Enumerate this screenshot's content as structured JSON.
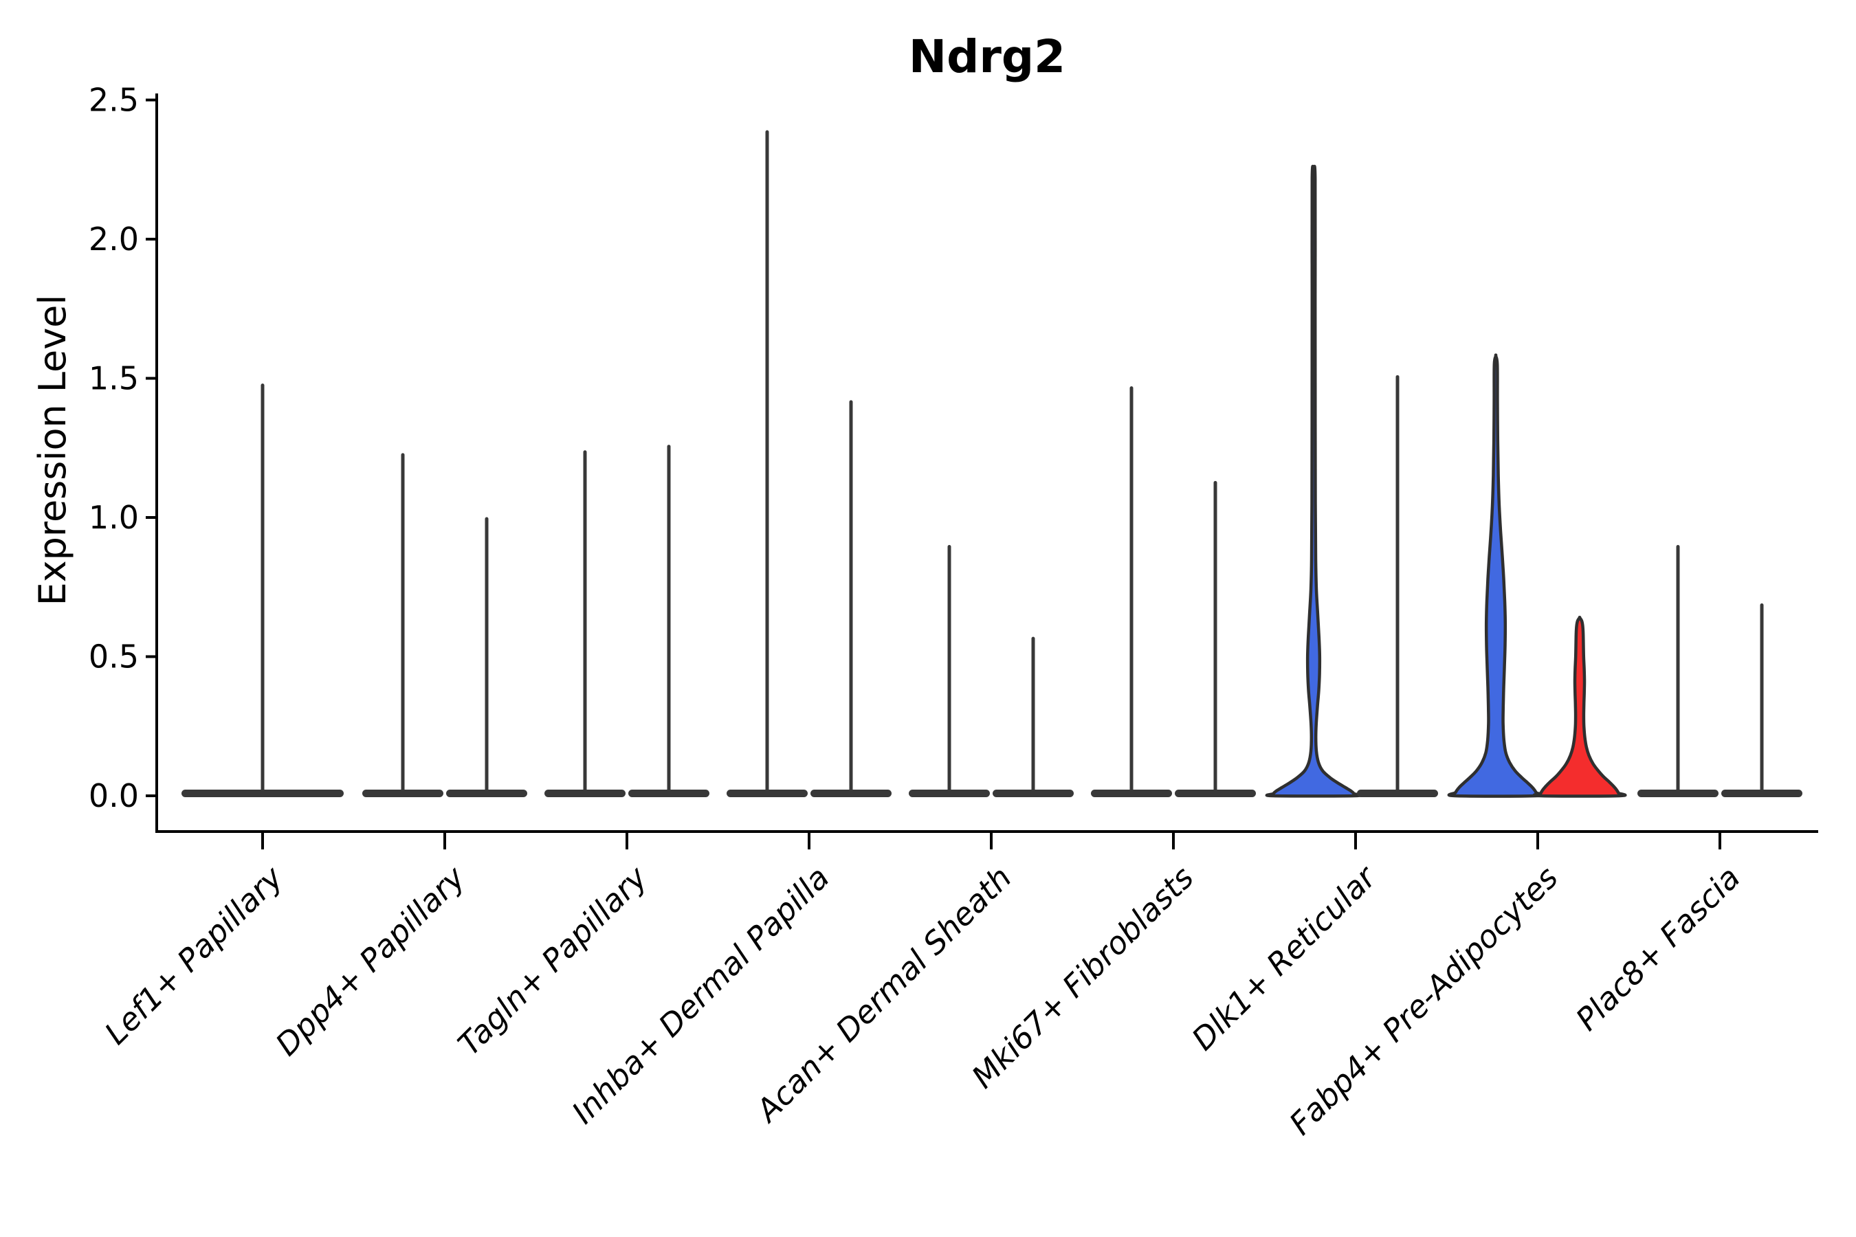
{
  "title": "Ndrg2",
  "y_axis": {
    "label": "Expression Level",
    "tick_labels": [
      "0.0",
      "0.5",
      "1.0",
      "1.5",
      "2.0",
      "2.5"
    ]
  },
  "x_axis": {
    "categories": [
      "Lef1+ Papillary",
      "Dpp4+ Papillary",
      "Tagln+ Papillary",
      "Inhba+ Dermal Papilla",
      "Acan+ Dermal Sheath",
      "Mki67+ Fibroblasts",
      "Dlk1+ Reticular",
      "Fabp4+ Pre-Adipocytes",
      "Plac8+ Fascia"
    ]
  },
  "style": {
    "blue": "#4169E1",
    "red": "#F42D2D",
    "dark": "#383838",
    "outline": "#2F2F2F",
    "background": "#FFFFFF",
    "text": "#000000"
  },
  "chart_data": {
    "type": "violin",
    "title": "Ndrg2",
    "xlabel": "",
    "ylabel": "Expression Level",
    "ylim": [
      0,
      2.5
    ],
    "yticks": [
      0.0,
      0.5,
      1.0,
      1.5,
      2.0,
      2.5
    ],
    "grid": false,
    "legend": false,
    "categories": [
      "Lef1+ Papillary",
      "Dpp4+ Papillary",
      "Tagln+ Papillary",
      "Inhba+ Dermal Papilla",
      "Acan+ Dermal Sheath",
      "Mki67+ Fibroblasts",
      "Dlk1+ Reticular",
      "Fabp4+ Pre-Adipocytes",
      "Plac8+ Fascia"
    ],
    "series": [
      {
        "category": "Lef1+ Papillary",
        "violins": [
          {
            "group": "single",
            "fill": "dark",
            "shape": "collapsed",
            "max_expression": 1.48
          }
        ]
      },
      {
        "category": "Dpp4+ Papillary",
        "violins": [
          {
            "group": "left",
            "fill": "dark",
            "shape": "collapsed",
            "max_expression": 1.23
          },
          {
            "group": "right",
            "fill": "dark",
            "shape": "collapsed",
            "max_expression": 1.0
          }
        ]
      },
      {
        "category": "Tagln+ Papillary",
        "violins": [
          {
            "group": "left",
            "fill": "dark",
            "shape": "collapsed",
            "max_expression": 1.24
          },
          {
            "group": "right",
            "fill": "dark",
            "shape": "collapsed",
            "max_expression": 1.26
          }
        ]
      },
      {
        "category": "Inhba+ Dermal Papilla",
        "violins": [
          {
            "group": "left",
            "fill": "dark",
            "shape": "collapsed",
            "max_expression": 2.39
          },
          {
            "group": "right",
            "fill": "dark",
            "shape": "collapsed",
            "max_expression": 1.42
          }
        ]
      },
      {
        "category": "Acan+ Dermal Sheath",
        "violins": [
          {
            "group": "left",
            "fill": "dark",
            "shape": "collapsed",
            "max_expression": 0.9
          },
          {
            "group": "right",
            "fill": "dark",
            "shape": "collapsed",
            "max_expression": 0.57
          }
        ]
      },
      {
        "category": "Mki67+ Fibroblasts",
        "violins": [
          {
            "group": "left",
            "fill": "dark",
            "shape": "collapsed",
            "max_expression": 1.47
          },
          {
            "group": "right",
            "fill": "dark",
            "shape": "collapsed",
            "max_expression": 1.13
          }
        ]
      },
      {
        "category": "Dlk1+ Reticular",
        "violins": [
          {
            "group": "left",
            "fill": "blue",
            "shape": "expanded",
            "max_expression": 2.25,
            "profile": [
              [
                2.25,
                0
              ],
              [
                2.22,
                2.2
              ],
              [
                1.8,
                2.2
              ],
              [
                1.4,
                2.3
              ],
              [
                1.05,
                2.5
              ],
              [
                0.85,
                3.0
              ],
              [
                0.74,
                4.0
              ],
              [
                0.65,
                6.0
              ],
              [
                0.57,
                7.8
              ],
              [
                0.5,
                8.8
              ],
              [
                0.44,
                8.6
              ],
              [
                0.38,
                7.5
              ],
              [
                0.32,
                5.5
              ],
              [
                0.26,
                3.8
              ],
              [
                0.21,
                3.2
              ],
              [
                0.16,
                4.0
              ],
              [
                0.12,
                7.0
              ],
              [
                0.09,
                13.0
              ],
              [
                0.065,
                24.0
              ],
              [
                0.045,
                36.0
              ],
              [
                0.03,
                46.0
              ],
              [
                0.018,
                54.0
              ],
              [
                0.008,
                58.5
              ],
              [
                0,
                59.5
              ]
            ]
          },
          {
            "group": "right",
            "fill": "dark",
            "shape": "collapsed",
            "max_expression": 1.51
          }
        ]
      },
      {
        "category": "Fabp4+ Pre-Adipocytes",
        "violins": [
          {
            "group": "left",
            "fill": "blue",
            "shape": "expanded",
            "max_expression": 1.58,
            "profile": [
              [
                1.58,
                0
              ],
              [
                1.55,
                2.2
              ],
              [
                1.42,
                2.4
              ],
              [
                1.28,
                2.8
              ],
              [
                1.15,
                3.6
              ],
              [
                1.04,
                5.0
              ],
              [
                0.95,
                7.0
              ],
              [
                0.86,
                9.5
              ],
              [
                0.78,
                11.5
              ],
              [
                0.7,
                13.0
              ],
              [
                0.62,
                13.8
              ],
              [
                0.54,
                13.5
              ],
              [
                0.46,
                12.5
              ],
              [
                0.39,
                11.5
              ],
              [
                0.32,
                10.8
              ],
              [
                0.26,
                10.6
              ],
              [
                0.2,
                11.8
              ],
              [
                0.155,
                14.5
              ],
              [
                0.12,
                20.0
              ],
              [
                0.09,
                28.0
              ],
              [
                0.065,
                38.0
              ],
              [
                0.045,
                47.0
              ],
              [
                0.028,
                54.0
              ],
              [
                0.012,
                58.5
              ],
              [
                0,
                59.5
              ]
            ]
          },
          {
            "group": "right",
            "fill": "red",
            "shape": "expanded",
            "max_expression": 0.64,
            "profile": [
              [
                0.64,
                0
              ],
              [
                0.63,
                2.8
              ],
              [
                0.615,
                4.2
              ],
              [
                0.59,
                5.0
              ],
              [
                0.55,
                5.4
              ],
              [
                0.5,
                5.8
              ],
              [
                0.455,
                6.6
              ],
              [
                0.41,
                7.0
              ],
              [
                0.37,
                6.7
              ],
              [
                0.33,
                6.2
              ],
              [
                0.29,
                5.9
              ],
              [
                0.25,
                6.2
              ],
              [
                0.21,
                7.5
              ],
              [
                0.175,
                9.8
              ],
              [
                0.145,
                13.5
              ],
              [
                0.115,
                19.5
              ],
              [
                0.09,
                27.0
              ],
              [
                0.068,
                35.0
              ],
              [
                0.05,
                43.0
              ],
              [
                0.035,
                49.0
              ],
              [
                0.022,
                53.5
              ],
              [
                0.01,
                56.5
              ],
              [
                0,
                58.0
              ]
            ]
          }
        ]
      },
      {
        "category": "Plac8+ Fascia",
        "violins": [
          {
            "group": "left",
            "fill": "dark",
            "shape": "collapsed",
            "max_expression": 0.9
          },
          {
            "group": "right",
            "fill": "dark",
            "shape": "collapsed",
            "max_expression": 0.69
          }
        ]
      }
    ]
  }
}
